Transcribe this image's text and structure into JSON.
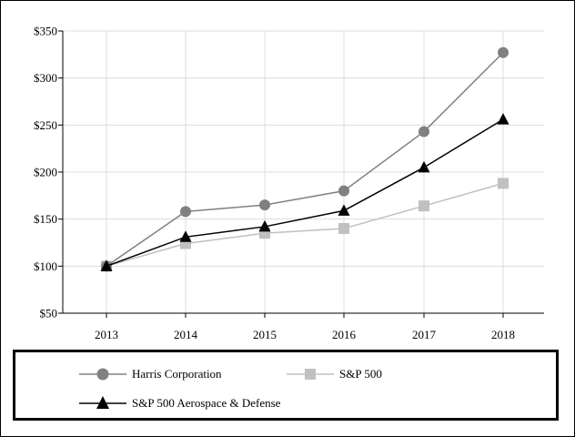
{
  "chart_data": {
    "type": "line",
    "categories": [
      "2013",
      "2014",
      "2015",
      "2016",
      "2017",
      "2018"
    ],
    "y_ticks": [
      "$50",
      "$100",
      "$150",
      "$200",
      "$250",
      "$300",
      "$350"
    ],
    "ylim": [
      50,
      350
    ],
    "grid": true,
    "legend_position": "bottom",
    "series": [
      {
        "name": "Harris Corporation",
        "values": [
          100,
          158,
          165,
          180,
          243,
          327
        ],
        "color": "#808080",
        "marker": "circle"
      },
      {
        "name": "S&P 500",
        "values": [
          100,
          124,
          135,
          140,
          164,
          188
        ],
        "color": "#c0c0c0",
        "marker": "square"
      },
      {
        "name": "S&P 500 Aerospace & Defense",
        "values": [
          100,
          131,
          142,
          159,
          205,
          256
        ],
        "color": "#000000",
        "marker": "triangle"
      }
    ]
  }
}
